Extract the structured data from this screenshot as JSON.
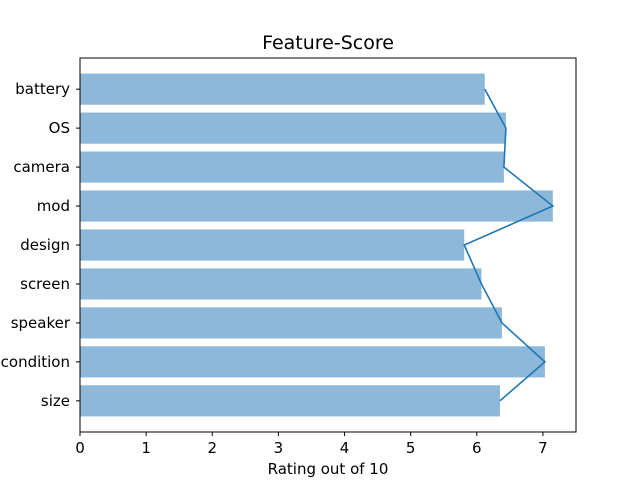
{
  "chart_data": {
    "type": "bar",
    "orientation": "horizontal",
    "title": "Feature-Score",
    "xlabel": "Rating out of 10",
    "ylabel": "",
    "categories": [
      "size",
      "condition",
      "speaker",
      "screen",
      "design",
      "mod",
      "camera",
      "OS",
      "battery"
    ],
    "values": [
      6.35,
      7.03,
      6.38,
      6.07,
      5.81,
      7.15,
      6.41,
      6.44,
      6.12
    ],
    "xlim": [
      0,
      7.5
    ],
    "xticks": [
      0,
      1,
      2,
      3,
      4,
      5,
      6,
      7
    ],
    "grid": false,
    "bar_color": "#8db8da",
    "line_color": "#1f77b4",
    "overlay": "line connecting bar ends"
  }
}
